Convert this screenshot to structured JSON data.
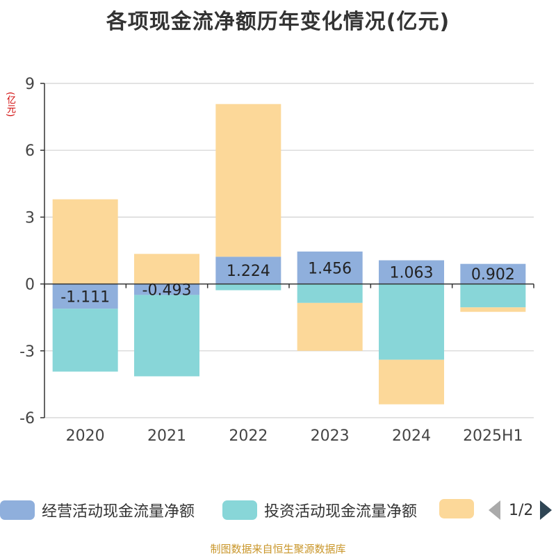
{
  "chart_data": {
    "type": "bar",
    "stacked": true,
    "title": "各项现金流净额历年变化情况(亿元)",
    "ylabel": "(亿元)",
    "categories": [
      "2020",
      "2021",
      "2022",
      "2023",
      "2024",
      "2025H1"
    ],
    "ylim": [
      -6,
      9
    ],
    "yticks": [
      9,
      6,
      3,
      0,
      -3,
      -6
    ],
    "grid": true,
    "legend_position": "bottom",
    "series": [
      {
        "name": "经营活动现金流量净额",
        "color": "#8fafdc",
        "values": [
          -1.111,
          -0.493,
          1.224,
          1.456,
          1.063,
          0.902
        ],
        "value_labels": [
          "-1.111",
          "-0.493",
          "1.224",
          "1.456",
          "1.063",
          "0.902"
        ]
      },
      {
        "name": "投资活动现金流量净额",
        "color": "#88d6d8",
        "values": [
          -2.82,
          -3.65,
          -0.28,
          -0.85,
          -3.4,
          -1.05
        ]
      },
      {
        "name": "",
        "color": "#fcd899",
        "values": [
          3.8,
          1.35,
          6.85,
          -2.15,
          -2.0,
          -0.2
        ]
      }
    ]
  },
  "legend": {
    "page_text": "1/2"
  },
  "source_note": "制图数据来自恒生聚源数据库"
}
